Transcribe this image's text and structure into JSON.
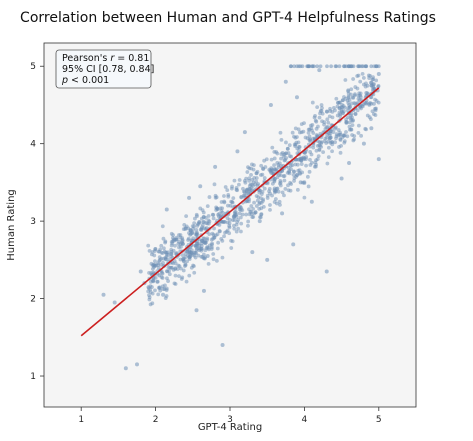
{
  "chart_data": {
    "type": "scatter",
    "title": "Correlation between Human and GPT-4 Helpfulness Ratings",
    "xlabel": "GPT-4 Rating",
    "ylabel": "Human Rating",
    "xlim": [
      0.5,
      5.5
    ],
    "ylim": [
      0.6,
      5.3
    ],
    "xticks": [
      "1",
      "2",
      "3",
      "4",
      "5"
    ],
    "yticks": [
      "1",
      "2",
      "3",
      "4",
      "5"
    ],
    "grid": false,
    "background": "#f5f5f5",
    "point_color": "#6d8fb6",
    "line_color": "#cc1f1f",
    "stats": {
      "line1_prefix": "Pearson's ",
      "line1_symbol": "r",
      "line1_value": " = 0.81",
      "line2": "95% CI [0.78, 0.84]",
      "line3_symbol": "p",
      "line3_value": " < 0.001"
    },
    "regression_line": {
      "x": [
        1,
        5
      ],
      "y": [
        1.52,
        4.72
      ]
    },
    "points": [
      [
        1.3,
        2.05
      ],
      [
        1.45,
        1.95
      ],
      [
        1.6,
        1.1
      ],
      [
        1.75,
        1.15
      ],
      [
        1.8,
        2.35
      ],
      [
        1.85,
        2.2
      ],
      [
        2.05,
        2.3
      ],
      [
        2.1,
        2.05
      ],
      [
        2.25,
        2.75
      ],
      [
        2.15,
        3.15
      ],
      [
        2.4,
        2.9
      ],
      [
        2.55,
        1.85
      ],
      [
        2.65,
        2.1
      ],
      [
        2.9,
        1.4
      ],
      [
        2.7,
        2.55
      ],
      [
        2.45,
        3.3
      ],
      [
        2.6,
        3.45
      ],
      [
        2.8,
        3.7
      ],
      [
        3.1,
        3.9
      ],
      [
        3.2,
        4.15
      ],
      [
        3.3,
        2.6
      ],
      [
        3.5,
        2.5
      ],
      [
        3.4,
        3.0
      ],
      [
        3.6,
        3.4
      ],
      [
        3.7,
        3.1
      ],
      [
        3.85,
        2.7
      ],
      [
        3.9,
        4.6
      ],
      [
        4.2,
        4.95
      ],
      [
        4.3,
        2.35
      ],
      [
        4.5,
        3.55
      ],
      [
        4.6,
        3.75
      ],
      [
        4.8,
        4.0
      ],
      [
        4.9,
        4.2
      ],
      [
        4.95,
        4.45
      ],
      [
        5.0,
        3.8
      ],
      [
        5.0,
        4.9
      ],
      [
        4.1,
        3.25
      ],
      [
        3.95,
        3.5
      ],
      [
        3.75,
        4.8
      ],
      [
        3.55,
        4.5
      ]
    ]
  }
}
